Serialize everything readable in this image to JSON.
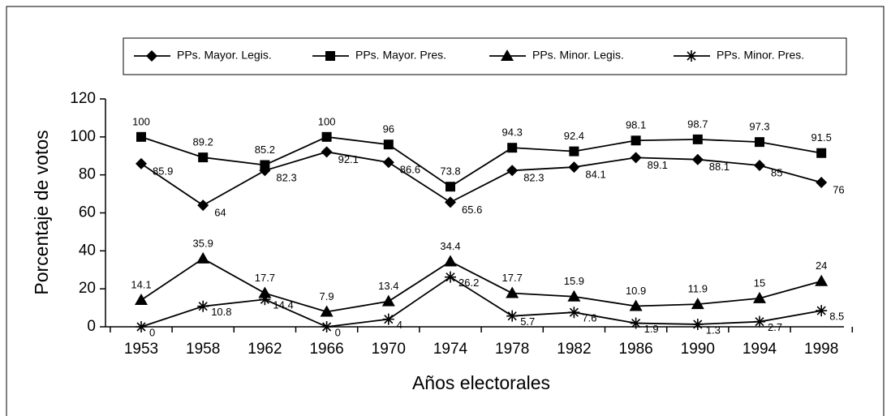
{
  "chart_data": {
    "type": "line",
    "xlabel": "Años electorales",
    "ylabel": "Porcentaje de votos",
    "categories": [
      "1953",
      "1958",
      "1962",
      "1966",
      "1970",
      "1974",
      "1978",
      "1982",
      "1986",
      "1990",
      "1994",
      "1998"
    ],
    "series": [
      {
        "name": "PPs. Mayor. Legis.",
        "color": "#000000",
        "marker": "diamond",
        "values": [
          85.9,
          64,
          82.3,
          92.1,
          86.6,
          65.6,
          82.3,
          84.1,
          89.1,
          88.1,
          85,
          76
        ]
      },
      {
        "name": "PPs. Mayor. Pres.",
        "color": "#000000",
        "marker": "square",
        "values": [
          100,
          89.2,
          85.2,
          100,
          96,
          73.8,
          94.3,
          92.4,
          98.1,
          98.7,
          97.3,
          91.5
        ]
      },
      {
        "name": "PPs. Minor. Legis.",
        "color": "#000000",
        "marker": "triangle",
        "values": [
          14.1,
          35.9,
          17.7,
          7.9,
          13.4,
          34.4,
          17.7,
          15.9,
          10.9,
          11.9,
          15,
          24
        ]
      },
      {
        "name": "PPs. Minor. Pres.",
        "color": "#000000",
        "marker": "asterisk",
        "values": [
          0,
          10.8,
          14.4,
          0,
          4,
          26.2,
          5.7,
          7.6,
          1.9,
          1.3,
          2.7,
          8.5
        ]
      }
    ],
    "ylim": [
      0,
      120
    ],
    "yticks": [
      0,
      20,
      40,
      60,
      80,
      100,
      120
    ],
    "legend": "top"
  }
}
